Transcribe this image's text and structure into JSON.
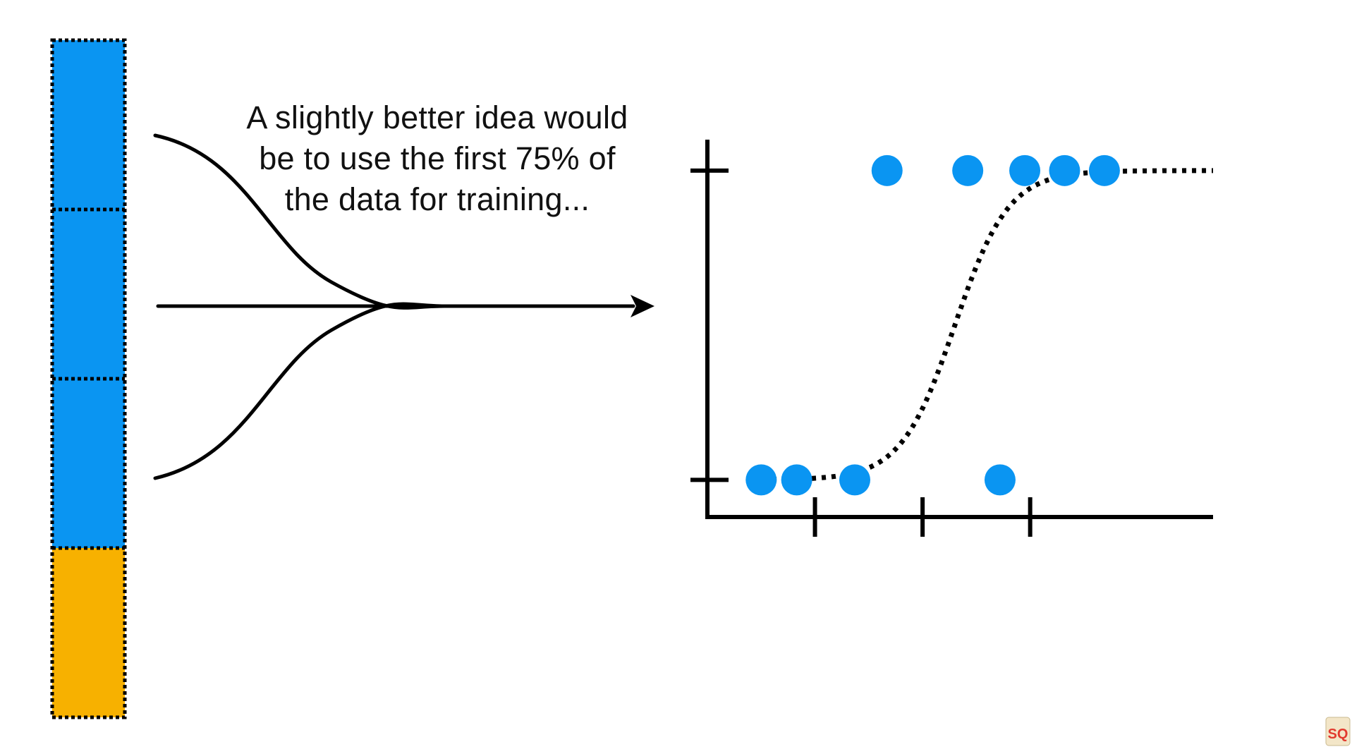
{
  "caption": {
    "line1": "A slightly better idea would",
    "line2": "be to use the first 75% of",
    "line3": "the data for training..."
  },
  "colors": {
    "training_block": "#0a95f2",
    "testing_block": "#f7b100",
    "point": "#0a95f2",
    "ink": "#000000",
    "background": "#ffffff"
  },
  "data_bar": {
    "blocks": [
      {
        "role": "training",
        "color": "#0a95f2"
      },
      {
        "role": "training",
        "color": "#0a95f2"
      },
      {
        "role": "training",
        "color": "#0a95f2"
      },
      {
        "role": "testing",
        "color": "#f7b100"
      }
    ]
  },
  "plot": {
    "points": [
      {
        "x": 0.5,
        "y": 0
      },
      {
        "x": 0.83,
        "y": 0
      },
      {
        "x": 1.37,
        "y": 0
      },
      {
        "x": 2.72,
        "y": 0
      },
      {
        "x": 1.67,
        "y": 1
      },
      {
        "x": 2.42,
        "y": 1
      },
      {
        "x": 2.95,
        "y": 1
      },
      {
        "x": 3.32,
        "y": 1
      },
      {
        "x": 3.69,
        "y": 1
      }
    ],
    "x_ticks": [
      1,
      2,
      3
    ],
    "y_ticks": [
      0,
      1
    ],
    "x_range": [
      0,
      4.7
    ],
    "y_range": [
      -0.12,
      1.1
    ],
    "curve": {
      "type": "logistic",
      "midpoint": 2.3,
      "steepness": 4.0
    }
  },
  "logo": {
    "text": "SQ"
  }
}
